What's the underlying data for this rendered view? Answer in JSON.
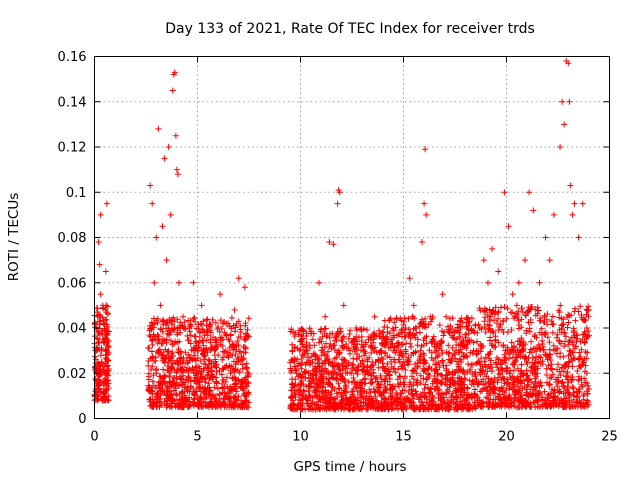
{
  "chart_data": {
    "type": "scatter",
    "title": "Day 133 of 2021, Rate Of TEC Index for receiver trds",
    "xlabel": "GPS time / hours",
    "ylabel": "ROTI / TECUs",
    "xlim": [
      0,
      25
    ],
    "ylim": [
      0,
      0.16
    ],
    "xticks": [
      0,
      5,
      10,
      15,
      20,
      25
    ],
    "xtick_labels": [
      "0",
      "5",
      "10",
      "15",
      "20",
      "25"
    ],
    "yticks": [
      0,
      0.02,
      0.04,
      0.06,
      0.08,
      0.1,
      0.12,
      0.14,
      0.16
    ],
    "ytick_labels": [
      "0",
      "0.02",
      "0.04",
      "0.06",
      "0.08",
      "0.1",
      "0.12",
      "0.14",
      "0.16"
    ],
    "grid": true,
    "marker": "+",
    "color": "#ff0000",
    "series": [
      {
        "values": [
          [
            0.05,
            0.03
          ],
          [
            0.1,
            0.02
          ],
          [
            0.15,
            0.045
          ],
          [
            0.2,
            0.015
          ],
          [
            0.25,
            0.068
          ],
          [
            0.3,
            0.09
          ],
          [
            0.35,
            0.025
          ],
          [
            0.4,
            0.05
          ],
          [
            0.45,
            0.012
          ],
          [
            0.5,
            0.035
          ],
          [
            0.55,
            0.065
          ],
          [
            0.6,
            0.095
          ],
          [
            0.62,
            0.02
          ],
          [
            0.2,
            0.078
          ],
          [
            0.3,
            0.055
          ],
          [
            2.7,
            0.103
          ],
          [
            2.8,
            0.095
          ],
          [
            2.9,
            0.06
          ],
          [
            3.0,
            0.08
          ],
          [
            3.1,
            0.128
          ],
          [
            3.2,
            0.05
          ],
          [
            3.3,
            0.085
          ],
          [
            3.4,
            0.115
          ],
          [
            3.5,
            0.07
          ],
          [
            3.6,
            0.12
          ],
          [
            3.7,
            0.09
          ],
          [
            3.8,
            0.145
          ],
          [
            3.85,
            0.152
          ],
          [
            3.9,
            0.153
          ],
          [
            3.95,
            0.125
          ],
          [
            4.0,
            0.11
          ],
          [
            4.05,
            0.108
          ],
          [
            4.1,
            0.06
          ],
          [
            4.3,
            0.045
          ],
          [
            4.6,
            0.04
          ],
          [
            4.8,
            0.06
          ],
          [
            5.2,
            0.05
          ],
          [
            5.6,
            0.04
          ],
          [
            6.1,
            0.055
          ],
          [
            6.4,
            0.042
          ],
          [
            6.8,
            0.048
          ],
          [
            7.0,
            0.062
          ],
          [
            7.3,
            0.058
          ],
          [
            3.0,
            0.02
          ],
          [
            3.3,
            0.015
          ],
          [
            3.6,
            0.025
          ],
          [
            3.9,
            0.018
          ],
          [
            4.2,
            0.022
          ],
          [
            4.5,
            0.012
          ],
          [
            4.8,
            0.03
          ],
          [
            5.1,
            0.016
          ],
          [
            5.4,
            0.024
          ],
          [
            5.7,
            0.01
          ],
          [
            6.0,
            0.028
          ],
          [
            6.3,
            0.014
          ],
          [
            6.6,
            0.02
          ],
          [
            6.9,
            0.012
          ],
          [
            7.2,
            0.026
          ],
          [
            9.6,
            0.03
          ],
          [
            9.8,
            0.02
          ],
          [
            10.0,
            0.015
          ],
          [
            10.3,
            0.025
          ],
          [
            10.6,
            0.035
          ],
          [
            10.9,
            0.06
          ],
          [
            11.2,
            0.045
          ],
          [
            11.4,
            0.078
          ],
          [
            11.6,
            0.077
          ],
          [
            11.8,
            0.095
          ],
          [
            11.85,
            0.101
          ],
          [
            11.9,
            0.1
          ],
          [
            12.1,
            0.05
          ],
          [
            12.4,
            0.03
          ],
          [
            12.7,
            0.04
          ],
          [
            13.0,
            0.025
          ],
          [
            13.3,
            0.035
          ],
          [
            13.6,
            0.045
          ],
          [
            13.9,
            0.03
          ],
          [
            10.1,
            0.01
          ],
          [
            10.5,
            0.018
          ],
          [
            11.0,
            0.012
          ],
          [
            11.5,
            0.02
          ],
          [
            12.0,
            0.008
          ],
          [
            12.5,
            0.016
          ],
          [
            13.1,
            0.012
          ],
          [
            13.7,
            0.018
          ],
          [
            14.2,
            0.02
          ],
          [
            14.5,
            0.03
          ],
          [
            14.8,
            0.028
          ],
          [
            15.1,
            0.04
          ],
          [
            15.3,
            0.062
          ],
          [
            15.5,
            0.05
          ],
          [
            15.7,
            0.035
          ],
          [
            15.9,
            0.078
          ],
          [
            16.0,
            0.095
          ],
          [
            16.05,
            0.119
          ],
          [
            16.1,
            0.09
          ],
          [
            16.3,
            0.045
          ],
          [
            16.6,
            0.03
          ],
          [
            16.9,
            0.055
          ],
          [
            17.2,
            0.02
          ],
          [
            17.5,
            0.035
          ],
          [
            17.8,
            0.025
          ],
          [
            18.1,
            0.04
          ],
          [
            18.4,
            0.03
          ],
          [
            14.4,
            0.01
          ],
          [
            15.0,
            0.016
          ],
          [
            15.6,
            0.012
          ],
          [
            16.2,
            0.02
          ],
          [
            16.8,
            0.01
          ],
          [
            17.4,
            0.018
          ],
          [
            18.0,
            0.008
          ],
          [
            18.7,
            0.04
          ],
          [
            18.9,
            0.07
          ],
          [
            19.1,
            0.06
          ],
          [
            19.3,
            0.075
          ],
          [
            19.6,
            0.065
          ],
          [
            19.9,
            0.1
          ],
          [
            20.1,
            0.085
          ],
          [
            20.3,
            0.055
          ],
          [
            20.6,
            0.06
          ],
          [
            20.9,
            0.07
          ],
          [
            21.1,
            0.1
          ],
          [
            21.3,
            0.092
          ],
          [
            21.6,
            0.06
          ],
          [
            21.9,
            0.08
          ],
          [
            22.1,
            0.07
          ],
          [
            22.3,
            0.09
          ],
          [
            22.6,
            0.12
          ],
          [
            22.7,
            0.14
          ],
          [
            22.8,
            0.13
          ],
          [
            22.9,
            0.158
          ],
          [
            23.0,
            0.157
          ],
          [
            23.05,
            0.14
          ],
          [
            23.1,
            0.103
          ],
          [
            23.2,
            0.09
          ],
          [
            23.3,
            0.095
          ],
          [
            23.5,
            0.08
          ],
          [
            23.7,
            0.095
          ],
          [
            23.9,
            0.04
          ],
          [
            18.6,
            0.015
          ],
          [
            19.2,
            0.022
          ],
          [
            19.8,
            0.012
          ],
          [
            20.4,
            0.025
          ],
          [
            21.0,
            0.014
          ],
          [
            21.5,
            0.02
          ],
          [
            22.0,
            0.01
          ],
          [
            22.5,
            0.024
          ],
          [
            23.0,
            0.016
          ],
          [
            23.5,
            0.012
          ],
          [
            23.9,
            0.02
          ]
        ],
        "clusters": [
          {
            "xrange": [
              0.0,
              0.7
            ],
            "yrange": [
              0.008,
              0.05
            ],
            "count": 220
          },
          {
            "xrange": [
              2.6,
              7.5
            ],
            "yrange": [
              0.005,
              0.045
            ],
            "count": 900
          },
          {
            "xrange": [
              9.5,
              14.0
            ],
            "yrange": [
              0.004,
              0.04
            ],
            "count": 800
          },
          {
            "xrange": [
              14.0,
              18.5
            ],
            "yrange": [
              0.004,
              0.045
            ],
            "count": 800
          },
          {
            "xrange": [
              18.5,
              24.0
            ],
            "yrange": [
              0.005,
              0.05
            ],
            "count": 900
          }
        ]
      }
    ]
  }
}
